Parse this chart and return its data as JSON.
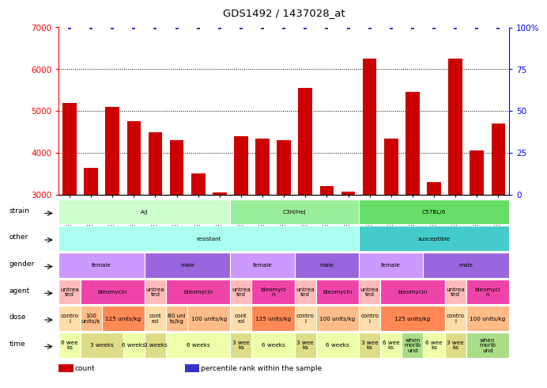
{
  "title": "GDS1492 / 1437028_at",
  "samples": [
    "GSM50713",
    "GSM50711",
    "GSM50712",
    "GSM50714",
    "GSM50707",
    "GSM50708",
    "GSM50709",
    "GSM50710",
    "GSM50727",
    "GSM50725",
    "GSM50726",
    "GSM50724",
    "GSM50722",
    "GSM50723",
    "GSM50721",
    "GSM50719",
    "GSM50720",
    "GSM50718",
    "GSM50717",
    "GSM50715",
    "GSM50716"
  ],
  "bar_values": [
    5200,
    3650,
    5100,
    4750,
    4500,
    4300,
    3500,
    3050,
    4400,
    4350,
    4300,
    5550,
    3200,
    3070,
    6250,
    4350,
    5450,
    3300,
    6250,
    4050,
    4700
  ],
  "bar_color": "#cc0000",
  "percentile_color": "#3333cc",
  "ylim_left": [
    3000,
    7000
  ],
  "ylim_right": [
    0,
    100
  ],
  "yticks_left": [
    3000,
    4000,
    5000,
    6000,
    7000
  ],
  "yticks_right": [
    0,
    25,
    50,
    75,
    100
  ],
  "grid_values": [
    4000,
    5000,
    6000
  ],
  "annotation_rows": [
    {
      "label": "strain",
      "groups": [
        {
          "text": "A/J",
          "span": [
            0,
            7
          ],
          "color": "#ccffcc"
        },
        {
          "text": "C3H/HeJ",
          "span": [
            8,
            13
          ],
          "color": "#99ee99"
        },
        {
          "text": "C57BL/6",
          "span": [
            14,
            20
          ],
          "color": "#66dd66"
        }
      ]
    },
    {
      "label": "other",
      "groups": [
        {
          "text": "resistant",
          "span": [
            0,
            13
          ],
          "color": "#aaffee"
        },
        {
          "text": "susceptible",
          "span": [
            14,
            20
          ],
          "color": "#44cccc"
        }
      ]
    },
    {
      "label": "gender",
      "groups": [
        {
          "text": "female",
          "span": [
            0,
            3
          ],
          "color": "#cc99ff"
        },
        {
          "text": "male",
          "span": [
            4,
            7
          ],
          "color": "#9966dd"
        },
        {
          "text": "female",
          "span": [
            8,
            10
          ],
          "color": "#cc99ff"
        },
        {
          "text": "male",
          "span": [
            11,
            13
          ],
          "color": "#9966dd"
        },
        {
          "text": "female",
          "span": [
            14,
            16
          ],
          "color": "#cc99ff"
        },
        {
          "text": "male",
          "span": [
            17,
            20
          ],
          "color": "#9966dd"
        }
      ]
    },
    {
      "label": "agent",
      "groups": [
        {
          "text": "untrea\nted",
          "span": [
            0,
            0
          ],
          "color": "#ffbbbb"
        },
        {
          "text": "bleomycin",
          "span": [
            1,
            3
          ],
          "color": "#ee44aa"
        },
        {
          "text": "untrea\nted",
          "span": [
            4,
            4
          ],
          "color": "#ffbbbb"
        },
        {
          "text": "bleomycin",
          "span": [
            5,
            7
          ],
          "color": "#ee44aa"
        },
        {
          "text": "untrea\nted",
          "span": [
            8,
            8
          ],
          "color": "#ffbbbb"
        },
        {
          "text": "bleomyci\nn",
          "span": [
            9,
            10
          ],
          "color": "#ee44aa"
        },
        {
          "text": "untrea\nted",
          "span": [
            11,
            11
          ],
          "color": "#ffbbbb"
        },
        {
          "text": "bleomycin",
          "span": [
            12,
            13
          ],
          "color": "#ee44aa"
        },
        {
          "text": "untrea\nted",
          "span": [
            14,
            14
          ],
          "color": "#ffbbbb"
        },
        {
          "text": "bleomycin",
          "span": [
            15,
            17
          ],
          "color": "#ee44aa"
        },
        {
          "text": "untrea\nted",
          "span": [
            18,
            18
          ],
          "color": "#ffbbbb"
        },
        {
          "text": "bleomyci\nn",
          "span": [
            19,
            20
          ],
          "color": "#ee44aa"
        }
      ]
    },
    {
      "label": "dose",
      "groups": [
        {
          "text": "contro\nl",
          "span": [
            0,
            0
          ],
          "color": "#ffddaa"
        },
        {
          "text": "100\nunits/k",
          "span": [
            1,
            1
          ],
          "color": "#ffbb88"
        },
        {
          "text": "125 units/kg",
          "span": [
            2,
            3
          ],
          "color": "#ff8855"
        },
        {
          "text": "cont\nrol",
          "span": [
            4,
            4
          ],
          "color": "#ffddaa"
        },
        {
          "text": "80 uni\nts/kg",
          "span": [
            5,
            5
          ],
          "color": "#ffbb88"
        },
        {
          "text": "100 units/kg",
          "span": [
            6,
            7
          ],
          "color": "#ffbb88"
        },
        {
          "text": "cont\nrol",
          "span": [
            8,
            8
          ],
          "color": "#ffddaa"
        },
        {
          "text": "125 units/kg",
          "span": [
            9,
            10
          ],
          "color": "#ff8855"
        },
        {
          "text": "contro\nl",
          "span": [
            11,
            11
          ],
          "color": "#ffddaa"
        },
        {
          "text": "100 units/kg",
          "span": [
            12,
            13
          ],
          "color": "#ffbb88"
        },
        {
          "text": "contro\nl",
          "span": [
            14,
            14
          ],
          "color": "#ffddaa"
        },
        {
          "text": "125 units/kg",
          "span": [
            15,
            17
          ],
          "color": "#ff8855"
        },
        {
          "text": "contro\nl",
          "span": [
            18,
            18
          ],
          "color": "#ffddaa"
        },
        {
          "text": "100 units/kg",
          "span": [
            19,
            20
          ],
          "color": "#ffbb88"
        }
      ]
    },
    {
      "label": "time",
      "groups": [
        {
          "text": "6 wee\nks",
          "span": [
            0,
            0
          ],
          "color": "#eeffaa"
        },
        {
          "text": "3 weeks",
          "span": [
            1,
            2
          ],
          "color": "#dddd88"
        },
        {
          "text": "6 weeks",
          "span": [
            3,
            3
          ],
          "color": "#eeffaa"
        },
        {
          "text": "3 weeks",
          "span": [
            4,
            4
          ],
          "color": "#dddd88"
        },
        {
          "text": "6 weeks",
          "span": [
            5,
            7
          ],
          "color": "#eeffaa"
        },
        {
          "text": "3 wee\nks",
          "span": [
            8,
            8
          ],
          "color": "#dddd88"
        },
        {
          "text": "6 weeks",
          "span": [
            9,
            10
          ],
          "color": "#eeffaa"
        },
        {
          "text": "3 wee\nks",
          "span": [
            11,
            11
          ],
          "color": "#dddd88"
        },
        {
          "text": "6 weeks",
          "span": [
            12,
            13
          ],
          "color": "#eeffaa"
        },
        {
          "text": "3 wee\nks",
          "span": [
            14,
            14
          ],
          "color": "#dddd88"
        },
        {
          "text": "6 wee\nks",
          "span": [
            15,
            15
          ],
          "color": "#eeffaa"
        },
        {
          "text": "when\nmorib\nund",
          "span": [
            16,
            16
          ],
          "color": "#aadd88"
        },
        {
          "text": "6 wee\nks",
          "span": [
            17,
            17
          ],
          "color": "#eeffaa"
        },
        {
          "text": "3 wee\nks",
          "span": [
            18,
            18
          ],
          "color": "#dddd88"
        },
        {
          "text": "when\nmorib\nund",
          "span": [
            19,
            20
          ],
          "color": "#aadd88"
        }
      ]
    }
  ],
  "legend_items": [
    {
      "label": "count",
      "color": "#cc0000"
    },
    {
      "label": "percentile rank within the sample",
      "color": "#3333cc"
    }
  ]
}
